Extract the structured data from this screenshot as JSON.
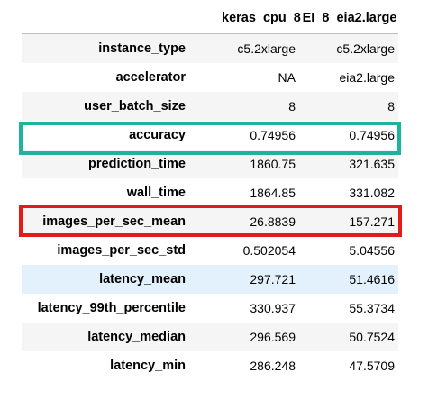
{
  "table": {
    "columns": [
      "",
      "keras_cpu_8",
      "EI_8_eia2.large"
    ],
    "rows": [
      {
        "label": "instance_type",
        "values": [
          "c5.2xlarge",
          "c5.2xlarge"
        ]
      },
      {
        "label": "accelerator",
        "values": [
          "NA",
          "eia2.large"
        ]
      },
      {
        "label": "user_batch_size",
        "values": [
          "8",
          "8"
        ]
      },
      {
        "label": "accuracy",
        "values": [
          "0.74956",
          "0.74956"
        ]
      },
      {
        "label": "prediction_time",
        "values": [
          "1860.75",
          "321.635"
        ]
      },
      {
        "label": "wall_time",
        "values": [
          "1864.85",
          "331.082"
        ]
      },
      {
        "label": "images_per_sec_mean",
        "values": [
          "26.8839",
          "157.271"
        ]
      },
      {
        "label": "images_per_sec_std",
        "values": [
          "0.502054",
          "5.04556"
        ]
      },
      {
        "label": "latency_mean",
        "values": [
          "297.721",
          "51.4616"
        ]
      },
      {
        "label": "latency_99th_percentile",
        "values": [
          "330.937",
          "55.3734"
        ]
      },
      {
        "label": "latency_median",
        "values": [
          "296.569",
          "50.7524"
        ]
      },
      {
        "label": "latency_min",
        "values": [
          "286.248",
          "47.5709"
        ]
      }
    ]
  },
  "highlights": {
    "accuracy_box_color": "#1db39c",
    "images_per_sec_mean_box_color": "#e41b17"
  }
}
